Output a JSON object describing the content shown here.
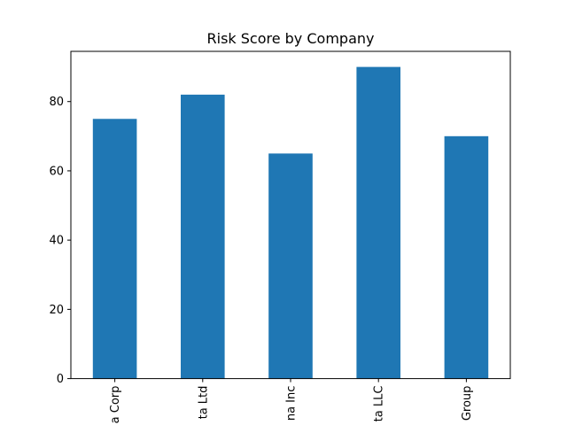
{
  "chart_data": {
    "type": "bar",
    "title": "Risk Score by Company",
    "xlabel": "",
    "ylabel": "",
    "categories": [
      "Alpha Corp",
      "Beta Ltd",
      "Gamma Inc",
      "Delta LLC",
      "Omega Group"
    ],
    "visible_category_labels": [
      "a Corp",
      "ta Ltd",
      "na Inc",
      "ta LLC",
      "Group"
    ],
    "values": [
      75,
      82,
      65,
      90,
      70
    ],
    "ylim": [
      0,
      94.5
    ],
    "yticks": [
      0,
      20,
      40,
      60,
      80
    ],
    "grid": false,
    "legend": "none",
    "bar_color": "#1f77b4",
    "tick_label_rotation": "vertical"
  }
}
